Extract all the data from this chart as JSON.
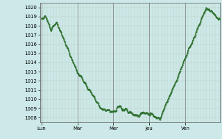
{
  "bg_color": "#cce8e8",
  "line_color": "#2a6e2a",
  "marker_color": "#2a6e2a",
  "ylim": [
    1007.5,
    1020.5
  ],
  "yticks": [
    1008,
    1009,
    1010,
    1011,
    1012,
    1013,
    1014,
    1015,
    1016,
    1017,
    1018,
    1019,
    1020
  ],
  "xtick_labels": [
    "Lun",
    "Mar",
    "Mer",
    "Jeu",
    "Ven"
  ],
  "xtick_positions": [
    0,
    48,
    96,
    144,
    192
  ],
  "xlim": [
    -2,
    238
  ],
  "tick_fontsize": 5.0,
  "major_vline_color": "#888888",
  "minor_vline_color": "#bbccbb",
  "hline_color": "#bbccbb"
}
